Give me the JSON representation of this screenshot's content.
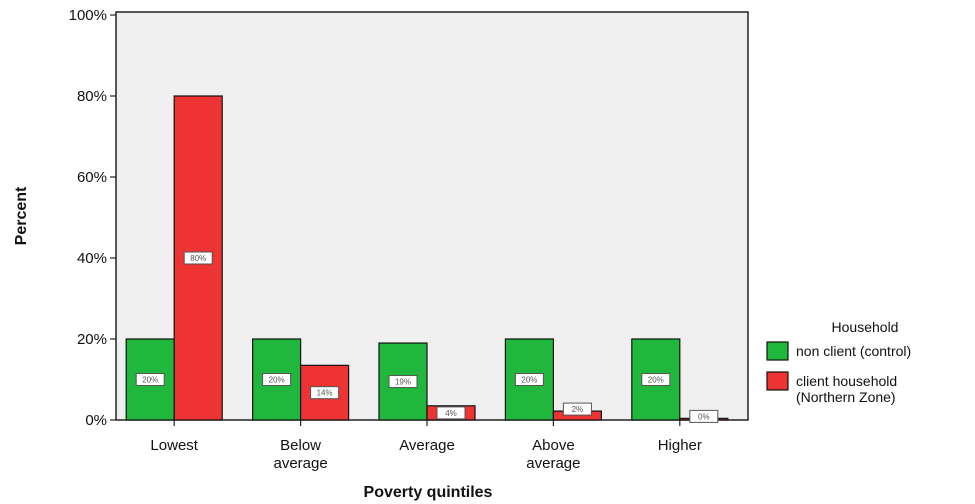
{
  "chart_data": {
    "type": "bar",
    "title": "",
    "xlabel": "Poverty quintiles",
    "ylabel": "Percent",
    "categories": [
      [
        "Lowest"
      ],
      [
        "Below",
        "average"
      ],
      [
        "Average"
      ],
      [
        "Above",
        "average"
      ],
      [
        "Higher"
      ]
    ],
    "series": [
      {
        "name": "non client (control)",
        "color": "#1fb83c",
        "values": [
          20,
          20,
          19,
          20,
          20
        ],
        "labels": [
          "20%",
          "20%",
          "19%",
          "20%",
          "20%"
        ]
      },
      {
        "name": "client household (Northern Zone)",
        "name_lines": [
          "client household",
          "(Northern Zone)"
        ],
        "color": "#ee3333",
        "values": [
          80,
          13.5,
          3.5,
          2.2,
          0.4
        ],
        "labels": [
          "80%",
          "14%",
          "4%",
          "2%",
          "0%"
        ]
      }
    ],
    "ylim": [
      0,
      100
    ],
    "yticks": [
      0,
      20,
      40,
      60,
      80,
      100
    ],
    "ytick_labels": [
      "0%",
      "20%",
      "40%",
      "60%",
      "80%",
      "100%"
    ],
    "legend": {
      "title": "Household",
      "position": "right"
    },
    "grid": false,
    "plot_background": "#efefef"
  }
}
